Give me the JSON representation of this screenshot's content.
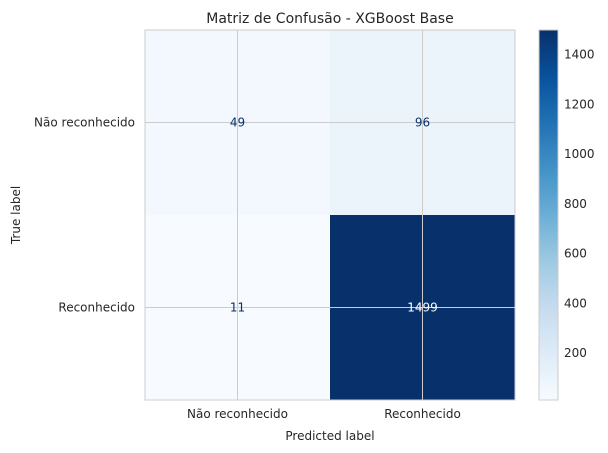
{
  "chart_data": {
    "type": "heatmap",
    "title": "Matriz de Confusão - XGBoost Base",
    "xlabel": "Predicted label",
    "ylabel": "True label",
    "x_categories": [
      "Não reconhecido",
      "Reconhecido"
    ],
    "y_categories": [
      "Não reconhecido",
      "Reconhecido"
    ],
    "values": [
      [
        49,
        96
      ],
      [
        11,
        1499
      ]
    ],
    "value_labels": [
      [
        "49",
        "96"
      ],
      [
        "11",
        "1499"
      ]
    ],
    "colorbar": {
      "min": 11,
      "max": 1499,
      "ticks": [
        200,
        400,
        600,
        800,
        1000,
        1200,
        1400
      ],
      "tick_labels": [
        "200",
        "400",
        "600",
        "800",
        "1000",
        "1200",
        "1400"
      ]
    },
    "colormap": "Blues",
    "grid": true
  }
}
